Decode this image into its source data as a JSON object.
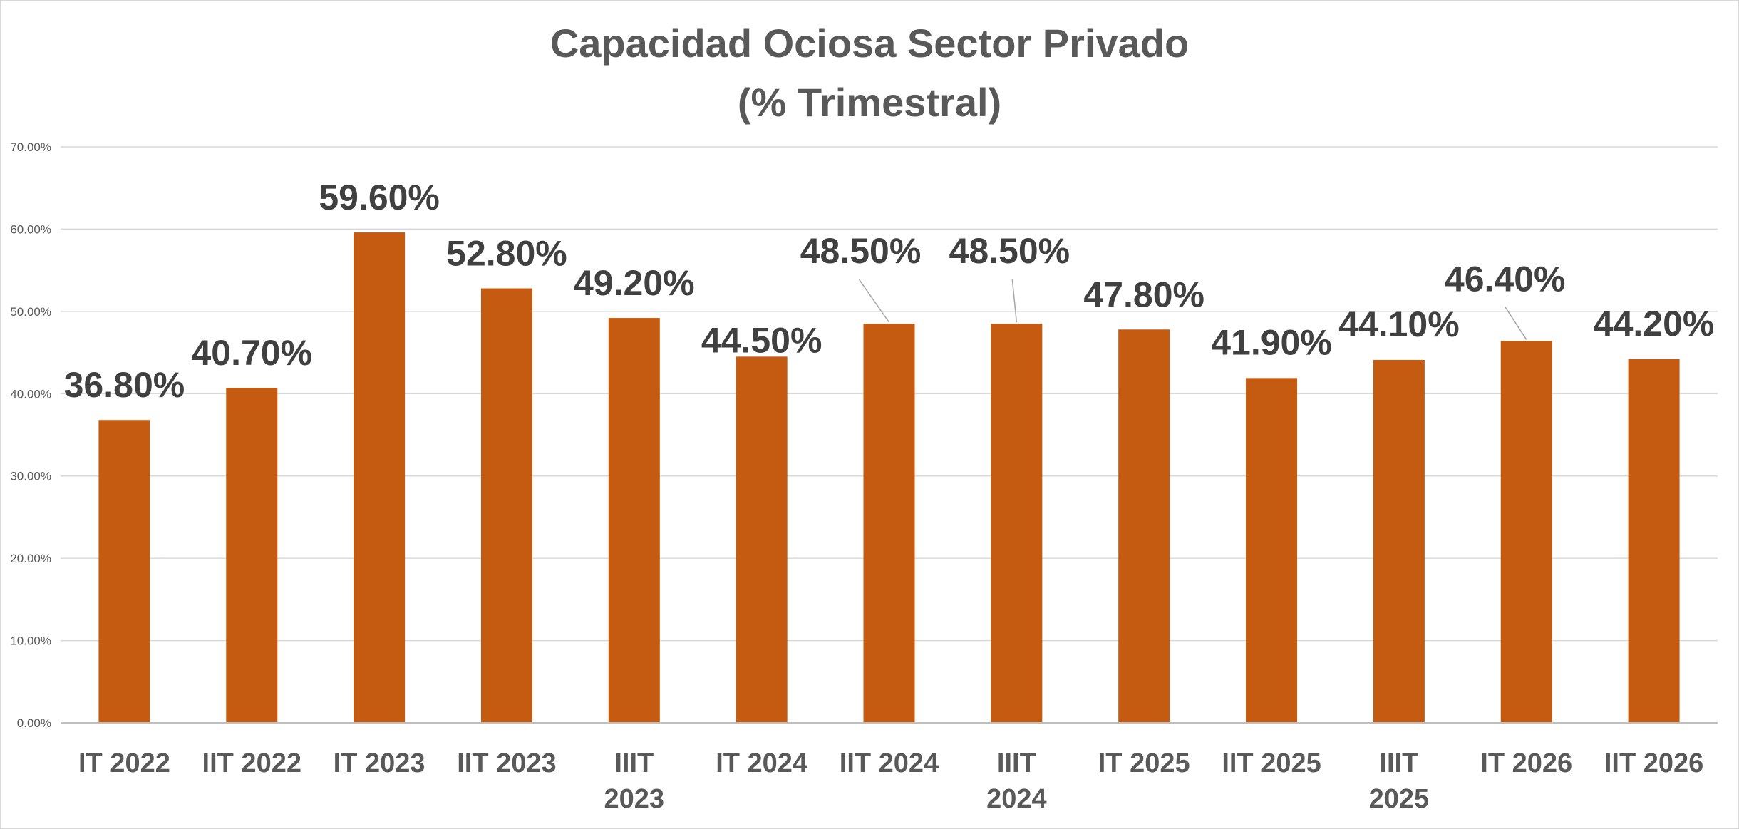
{
  "chart_data": {
    "type": "bar",
    "title_lines": [
      "Capacidad Ociosa Sector Privado",
      "(% Trimestral)"
    ],
    "categories": [
      [
        "IT 2022"
      ],
      [
        "IIT 2022"
      ],
      [
        "IT 2023"
      ],
      [
        "IIT 2023"
      ],
      [
        "IIIT",
        "2023"
      ],
      [
        "IT 2024"
      ],
      [
        "IIT 2024"
      ],
      [
        "IIIT",
        "2024"
      ],
      [
        "IT 2025"
      ],
      [
        "IIT 2025"
      ],
      [
        "IIIT",
        "2025"
      ],
      [
        "IT 2026"
      ],
      [
        "IIT 2026"
      ]
    ],
    "values": [
      36.8,
      40.7,
      59.6,
      52.8,
      49.2,
      44.5,
      48.5,
      48.5,
      47.8,
      41.9,
      44.1,
      46.4,
      44.2
    ],
    "data_labels": [
      "36.80%",
      "40.70%",
      "59.60%",
      "52.80%",
      "49.20%",
      "44.50%",
      "48.50%",
      "48.50%",
      "47.80%",
      "41.90%",
      "44.10%",
      "46.40%",
      "44.20%"
    ],
    "y_ticks": [
      0,
      10,
      20,
      30,
      40,
      50,
      60,
      70
    ],
    "y_tick_labels": [
      "0.00%",
      "10.00%",
      "20.00%",
      "30.00%",
      "40.00%",
      "50.00%",
      "60.00%",
      "70.00%"
    ],
    "ylim": [
      0,
      70
    ],
    "grid": true,
    "legend": "none",
    "bar_color": "#c55a11"
  }
}
